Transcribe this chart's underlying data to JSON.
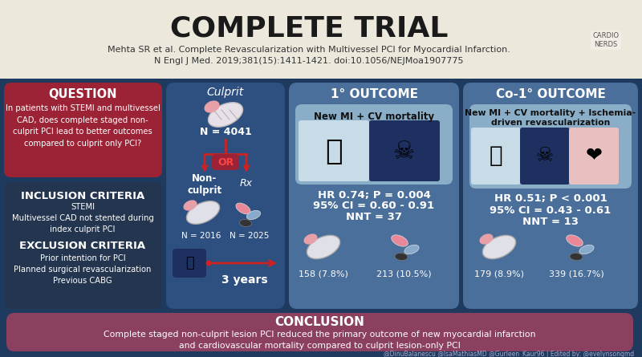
{
  "title": "COMPLETE TRIAL",
  "subtitle_line1": "Mehta SR et al. Complete Revascularization with Multivessel PCI for Myocardial Infarction.",
  "subtitle_line2": "N Engl J Med. 2019;381(15):1411-1421. doi:10.1056/NEJMoa1907775",
  "header_bg": "#ede8dc",
  "main_bg": "#1e3a5f",
  "question_bg": "#9b2335",
  "question_title": "QUESTION",
  "question_body": "In patients with STEMI and multivessel\nCAD, does complete staged non-\nculprit PCI lead to better outcomes\ncompared to culprit only PCI?",
  "inclusion_bg": "#243550",
  "inclusion_title": "INCLUSION CRITERIA",
  "inclusion_body": "STEMI\nMultivessel CAD not stented during\nindex culprit PCI",
  "exclusion_title": "EXCLUSION CRITERIA",
  "exclusion_body": "Prior intention for PCI\nPlanned surgical revascularization\nPrevious CABG",
  "middle_bg": "#2e5080",
  "culprit_label": "Culprit",
  "n_total": "N = 4041",
  "or_label": "OR",
  "nonculprit_label": "Non-\nculprit",
  "rx_label": "Rx",
  "n_nonculprit": "N = 2016",
  "n_rx": "N = 2025",
  "followup": "3 years",
  "outcome1_bg": "#4a6f9a",
  "outcome1_title": "1° OUTCOME",
  "outcome1_desc": "New MI + CV mortality",
  "outcome1_hr": "HR 0.74; P = 0.004",
  "outcome1_ci": "95% CI = 0.60 - 0.91",
  "outcome1_nnt": "NNT = 37",
  "outcome1_val1": "158 (7.8%)",
  "outcome1_val2": "213 (10.5%)",
  "outcome2_bg": "#4a6f9a",
  "outcome2_title": "Co-1° OUTCOME",
  "outcome2_desc": "New MI + CV mortality + Ischemia-\ndriven revascularization",
  "outcome2_hr": "HR 0.51; P < 0.001",
  "outcome2_ci": "95% CI = 0.43 - 0.61",
  "outcome2_nnt": "NNT = 13",
  "outcome2_val1": "179 (8.9%)",
  "outcome2_val2": "339 (16.7%)",
  "conclusion_bg": "#8b4060",
  "conclusion_title": "CONCLUSION",
  "conclusion_body": "Complete staged non-culprit lesion PCI reduced the primary outcome of new myocardial infarction\nand cardiovascular mortality compared to culprit lesion-only PCI",
  "footer": "@DinuBalanescu @IsaMathiasMD @Gurleen_Kaur96 | Edited by: @evelynsongmd",
  "title_color": "#1a1a1a",
  "white": "#ffffff",
  "inner_light_bg": "#8aaec8",
  "inner_dark_bg": "#1e3060"
}
